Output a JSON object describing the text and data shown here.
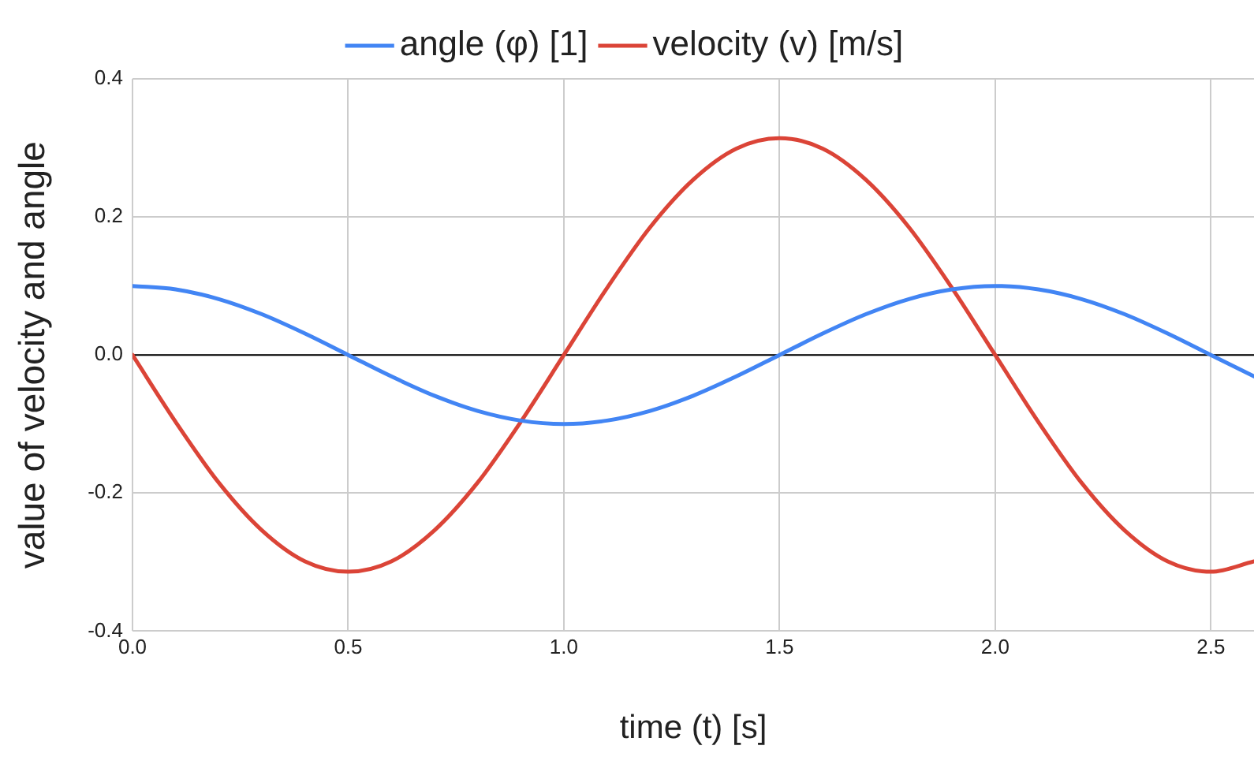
{
  "chart_data": {
    "type": "line",
    "xlabel": "time (t) [s]",
    "ylabel": "value of velocity and angle",
    "x": [
      0,
      0.1,
      0.2,
      0.3,
      0.4,
      0.5,
      0.6,
      0.7,
      0.8,
      0.9,
      1.0,
      1.1,
      1.2,
      1.3,
      1.4,
      1.5,
      1.6,
      1.7,
      1.8,
      1.9,
      2.0,
      2.1,
      2.2,
      2.3,
      2.4,
      2.5,
      2.6
    ],
    "series": [
      {
        "name": "angle (φ) [1]",
        "color": "#4285f4",
        "values": [
          0.1,
          0.095,
          0.081,
          0.059,
          0.031,
          0,
          -0.031,
          -0.059,
          -0.081,
          -0.095,
          -0.1,
          -0.095,
          -0.081,
          -0.059,
          -0.031,
          0,
          0.031,
          0.059,
          0.081,
          0.095,
          0.1,
          0.095,
          0.081,
          0.059,
          0.031,
          0,
          -0.031
        ]
      },
      {
        "name": "velocity (v) [m/s]",
        "color": "#db4437",
        "values": [
          0,
          -0.097,
          -0.185,
          -0.254,
          -0.299,
          -0.314,
          -0.299,
          -0.254,
          -0.185,
          -0.097,
          0,
          0.097,
          0.185,
          0.254,
          0.299,
          0.314,
          0.299,
          0.254,
          0.185,
          0.097,
          0,
          -0.097,
          -0.185,
          -0.254,
          -0.299,
          -0.314,
          -0.299
        ]
      }
    ],
    "xlim": [
      0,
      2.6
    ],
    "xticks": [
      {
        "value": 0,
        "label": "0.0"
      },
      0.5,
      {
        "value": 1,
        "label": "1.0"
      },
      1.5,
      {
        "value": 2,
        "label": "2.0"
      },
      2.5
    ],
    "ylim": [
      -0.4,
      0.4
    ],
    "yticks": [
      -0.4,
      -0.2,
      {
        "value": 0,
        "label": "0.0"
      },
      0.2,
      0.4
    ],
    "ref_lines": [
      {
        "axis": "y",
        "value": 0,
        "color": "#000000"
      }
    ],
    "grid": true,
    "legend": "top",
    "marker": "none",
    "line_style": "solid"
  }
}
